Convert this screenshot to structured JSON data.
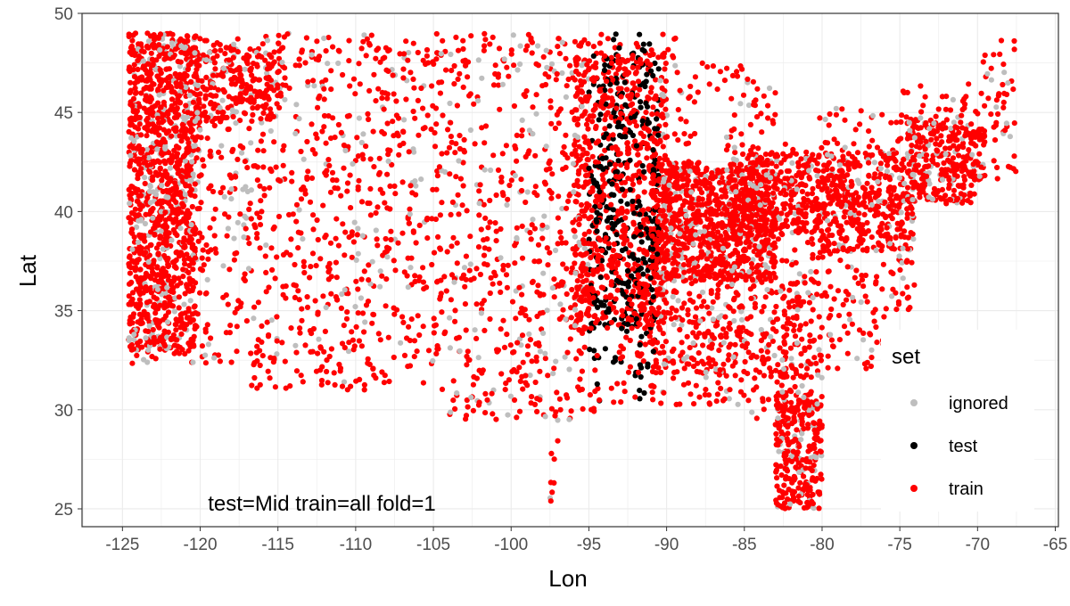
{
  "chart_data": {
    "type": "scatter",
    "xlabel": "Lon",
    "ylabel": "Lat",
    "xlim": [
      -127.6,
      -64.8
    ],
    "ylim": [
      24.1,
      50.0
    ],
    "x_ticks": [
      -125,
      -120,
      -115,
      -110,
      -105,
      -100,
      -95,
      -90,
      -85,
      -80,
      -75,
      -70,
      -65
    ],
    "y_ticks": [
      25,
      30,
      35,
      40,
      45,
      50
    ],
    "grid": true,
    "legend": {
      "title": "set",
      "position": "right-bottom",
      "entries": [
        {
          "label": "ignored",
          "color": "#bebebe"
        },
        {
          "label": "test",
          "color": "#000000"
        },
        {
          "label": "train",
          "color": "#ff0000"
        }
      ]
    },
    "annotation": {
      "text": "test=Mid train=all fold=1",
      "x": -119.5,
      "y": 24.9
    },
    "colors": {
      "ignored": "#bebebe",
      "test": "#000000",
      "train": "#ff0000"
    },
    "test_region_lon": [
      -95.0,
      -90.5
    ],
    "point_cloud": {
      "description_regions": [
        {
          "name": "west-coast",
          "lon": [
            -124.5,
            -117
          ],
          "lat": [
            32.5,
            49
          ]
        },
        {
          "name": "great-lakes-midwest",
          "lon": [
            -91,
            -84
          ],
          "lat": [
            36,
            46
          ]
        },
        {
          "name": "florida",
          "lon": [
            -83,
            -80
          ],
          "lat": [
            25.5,
            31
          ]
        }
      ]
    }
  }
}
